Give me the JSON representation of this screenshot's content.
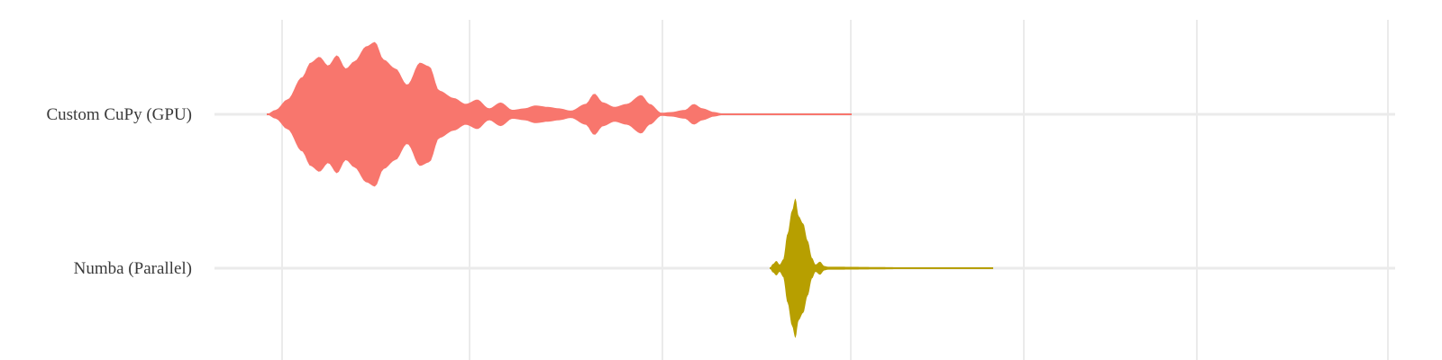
{
  "chart_data": {
    "type": "violin",
    "orientation": "horizontal",
    "title": "",
    "xlabel": "",
    "ylabel": "",
    "x_tick_labels_visible": false,
    "grid": true,
    "legend": "none",
    "categories": [
      "Custom CuPy (GPU)",
      "Numba (Parallel)"
    ],
    "series": [
      {
        "name": "Custom CuPy (GPU)",
        "color": "#f8766d",
        "density_profile": [
          [
            0.0,
            0.0
          ],
          [
            0.015,
            0.06
          ],
          [
            0.035,
            0.2
          ],
          [
            0.06,
            0.5
          ],
          [
            0.075,
            0.7
          ],
          [
            0.09,
            0.78
          ],
          [
            0.105,
            0.66
          ],
          [
            0.12,
            0.8
          ],
          [
            0.135,
            0.62
          ],
          [
            0.15,
            0.72
          ],
          [
            0.17,
            0.92
          ],
          [
            0.185,
            0.98
          ],
          [
            0.2,
            0.74
          ],
          [
            0.22,
            0.62
          ],
          [
            0.24,
            0.4
          ],
          [
            0.262,
            0.7
          ],
          [
            0.278,
            0.65
          ],
          [
            0.295,
            0.32
          ],
          [
            0.32,
            0.22
          ],
          [
            0.34,
            0.14
          ],
          [
            0.36,
            0.2
          ],
          [
            0.38,
            0.08
          ],
          [
            0.4,
            0.16
          ],
          [
            0.42,
            0.06
          ],
          [
            0.44,
            0.08
          ],
          [
            0.46,
            0.12
          ],
          [
            0.48,
            0.1
          ],
          [
            0.5,
            0.08
          ],
          [
            0.52,
            0.05
          ],
          [
            0.545,
            0.14
          ],
          [
            0.56,
            0.28
          ],
          [
            0.575,
            0.16
          ],
          [
            0.595,
            0.1
          ],
          [
            0.615,
            0.14
          ],
          [
            0.64,
            0.26
          ],
          [
            0.655,
            0.14
          ],
          [
            0.675,
            0.02
          ],
          [
            0.69,
            0.03
          ],
          [
            0.715,
            0.06
          ],
          [
            0.73,
            0.14
          ],
          [
            0.745,
            0.08
          ],
          [
            0.765,
            0.03
          ],
          [
            0.78,
            0.01
          ],
          [
            1.0,
            0.0
          ]
        ]
      },
      {
        "name": "Numba (Parallel)",
        "color": "#b79f00",
        "density_profile": [
          [
            0.0,
            0.0
          ],
          [
            0.015,
            0.06
          ],
          [
            0.03,
            0.1
          ],
          [
            0.045,
            0.05
          ],
          [
            0.06,
            0.12
          ],
          [
            0.08,
            0.48
          ],
          [
            0.1,
            0.8
          ],
          [
            0.115,
            0.97
          ],
          [
            0.13,
            0.72
          ],
          [
            0.15,
            0.62
          ],
          [
            0.17,
            0.38
          ],
          [
            0.19,
            0.14
          ],
          [
            0.205,
            0.05
          ],
          [
            0.225,
            0.09
          ],
          [
            0.245,
            0.03
          ],
          [
            0.26,
            0.02
          ],
          [
            1.0,
            0.0
          ]
        ]
      }
    ]
  }
}
